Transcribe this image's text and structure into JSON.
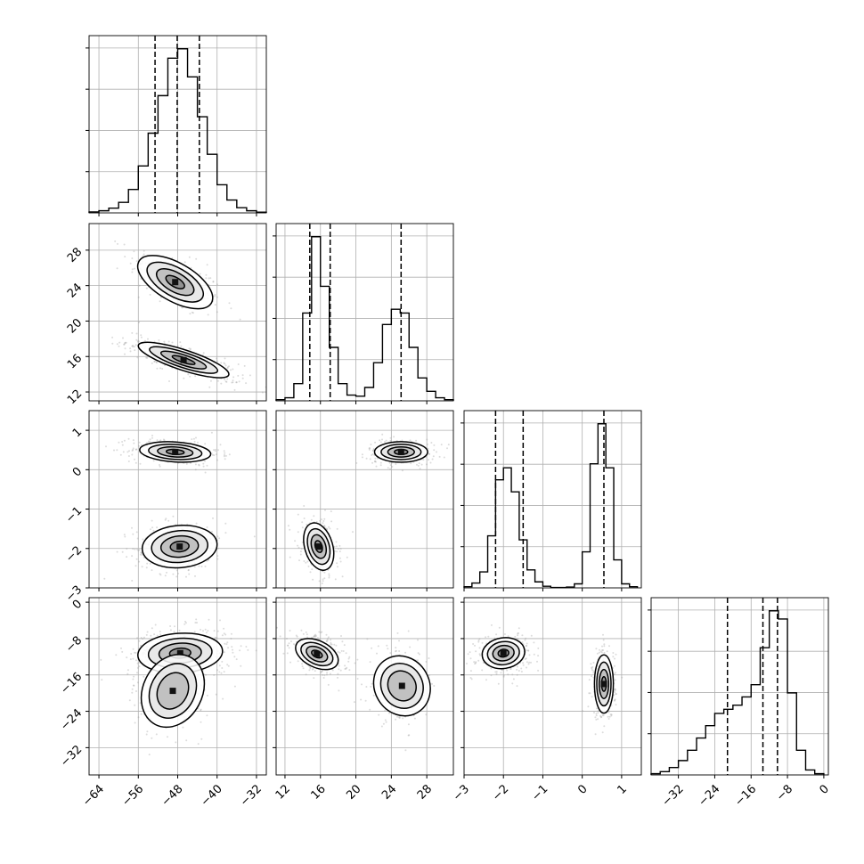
{
  "chart_data": {
    "type": "corner",
    "title": "",
    "colors": {
      "line": "#000000",
      "grid": "#b0b0b0",
      "points": "#9a9a9a",
      "panel_edge": "#000000"
    },
    "grid": true,
    "parameters": [
      {
        "index": 0,
        "range": [
          -66,
          -30
        ],
        "ticks": [
          -64,
          -56,
          -48,
          -40,
          -32
        ],
        "tick_labels": [
          "−64",
          "−56",
          "−48",
          "−40",
          "−32"
        ],
        "quantiles": [
          -52.6,
          -48.1,
          -43.6
        ]
      },
      {
        "index": 1,
        "range": [
          11,
          31
        ],
        "ticks": [
          12,
          16,
          20,
          24,
          28
        ],
        "tick_labels": [
          "12",
          "16",
          "20",
          "24",
          "28"
        ],
        "quantiles": [
          14.8,
          17.1,
          25.1
        ]
      },
      {
        "index": 2,
        "range": [
          -3,
          1.5
        ],
        "ticks": [
          -3,
          -2,
          -1,
          0,
          1
        ],
        "tick_labels": [
          "−3",
          "−2",
          "−1",
          "0",
          "1"
        ],
        "quantiles": [
          -2.2,
          -1.5,
          0.55
        ]
      },
      {
        "index": 3,
        "range": [
          -38,
          1
        ],
        "ticks": [
          -32,
          -24,
          -16,
          -8,
          0
        ],
        "tick_labels": [
          "−32",
          "−24",
          "−16",
          "−8",
          "0"
        ],
        "quantiles": [
          -21.2,
          -13.4,
          -10.2
        ]
      }
    ],
    "y_tick_labels": {
      "1": [
        "12",
        "16",
        "20",
        "24",
        "28"
      ],
      "2": [
        "−3",
        "−2",
        "−1",
        "0",
        "1"
      ],
      "3": [
        "−32",
        "−24",
        "−16",
        "−8",
        "0"
      ]
    },
    "histograms": [
      {
        "param": 0,
        "bin_edges": [
          -66,
          -64,
          -62,
          -60,
          -58,
          -56,
          -54,
          -52,
          -50,
          -48,
          -46,
          -44,
          -42,
          -40,
          -38,
          -36,
          -34,
          -32,
          -30
        ],
        "counts": [
          0.4,
          0.9,
          2,
          4.5,
          10,
          20,
          34,
          50,
          66,
          70,
          58,
          41,
          25,
          12,
          5.5,
          2.2,
          0.9,
          0.3
        ]
      },
      {
        "param": 1,
        "bin_edges": [
          11,
          12,
          13,
          14,
          15,
          16,
          17,
          18,
          19,
          20,
          21,
          22,
          23,
          24,
          25,
          26,
          27,
          28,
          29,
          30,
          31
        ],
        "counts": [
          0.3,
          0.8,
          4.5,
          23,
          43,
          30,
          14,
          4.5,
          1.5,
          1.2,
          3.5,
          10,
          20,
          24,
          23,
          14,
          6,
          2.5,
          0.8,
          0.3
        ]
      },
      {
        "param": 2,
        "bin_edges": [
          -3,
          -2.8,
          -2.6,
          -2.4,
          -2.2,
          -2,
          -1.8,
          -1.6,
          -1.4,
          -1.2,
          -1,
          -0.8,
          -0.6,
          -0.4,
          -0.2,
          0,
          0.2,
          0.4,
          0.6,
          0.8,
          1,
          1.2,
          1.4
        ],
        "counts": [
          0.3,
          1.2,
          4,
          13,
          27,
          30,
          24,
          12,
          4.5,
          1.5,
          0.4,
          0.1,
          0.1,
          0.2,
          1,
          9,
          31,
          41,
          30,
          7,
          1,
          0.3
        ]
      },
      {
        "param": 3,
        "bin_edges": [
          -38,
          -36,
          -34,
          -32,
          -30,
          -28,
          -26,
          -24,
          -22,
          -20,
          -18,
          -16,
          -14,
          -12,
          -10,
          -8,
          -6,
          -4,
          -2,
          0
        ],
        "counts": [
          0.3,
          0.8,
          1.8,
          3.5,
          6,
          9,
          12,
          15,
          16,
          17,
          19,
          22,
          31,
          40,
          38,
          20,
          6,
          1.2,
          0.3
        ]
      }
    ],
    "density_2d": [
      {
        "x": 0,
        "y": 1,
        "modes": [
          {
            "cx": -48.5,
            "cy": 24.4,
            "sx": 3.8,
            "sy": 1.5,
            "rho": -0.6,
            "w": 0.7
          },
          {
            "cx": -46.8,
            "cy": 15.6,
            "sx": 4.6,
            "sy": 1.0,
            "rho": -0.8,
            "w": 1.0
          }
        ]
      },
      {
        "x": 0,
        "y": 2,
        "modes": [
          {
            "cx": -48.5,
            "cy": 0.45,
            "sx": 3.6,
            "sy": 0.13,
            "rho": -0.2,
            "w": 1.0
          },
          {
            "cx": -47.6,
            "cy": -1.95,
            "sx": 3.8,
            "sy": 0.27,
            "rho": 0.1,
            "w": 0.85
          }
        ]
      },
      {
        "x": 0,
        "y": 3,
        "modes": [
          {
            "cx": -47.5,
            "cy": -11.2,
            "sx": 4.3,
            "sy": 2.2,
            "rho": 0.1,
            "w": 1.0
          },
          {
            "cx": -49.0,
            "cy": -19.5,
            "sx": 3.2,
            "sy": 4.0,
            "rho": 0.2,
            "w": 0.45
          }
        ]
      },
      {
        "x": 1,
        "y": 2,
        "modes": [
          {
            "cx": 25.1,
            "cy": 0.45,
            "sx": 1.5,
            "sy": 0.13,
            "rho": 0.0,
            "w": 1.0
          },
          {
            "cx": 15.8,
            "cy": -1.95,
            "sx": 0.85,
            "sy": 0.3,
            "rho": -0.3,
            "w": 1.0
          }
        ]
      },
      {
        "x": 1,
        "y": 3,
        "modes": [
          {
            "cx": 15.6,
            "cy": -11.4,
            "sx": 1.2,
            "sy": 1.7,
            "rho": -0.4,
            "w": 1.0
          },
          {
            "cx": 25.2,
            "cy": -18.4,
            "sx": 1.6,
            "sy": 3.3,
            "rho": -0.1,
            "w": 0.6
          }
        ]
      },
      {
        "x": 2,
        "y": 3,
        "modes": [
          {
            "cx": -2.0,
            "cy": -11.2,
            "sx": 0.27,
            "sy": 1.7,
            "rho": 0.1,
            "w": 1.0
          },
          {
            "cx": 0.55,
            "cy": -18.0,
            "sx": 0.12,
            "sy": 3.2,
            "rho": 0.0,
            "w": 0.85
          }
        ]
      }
    ]
  }
}
